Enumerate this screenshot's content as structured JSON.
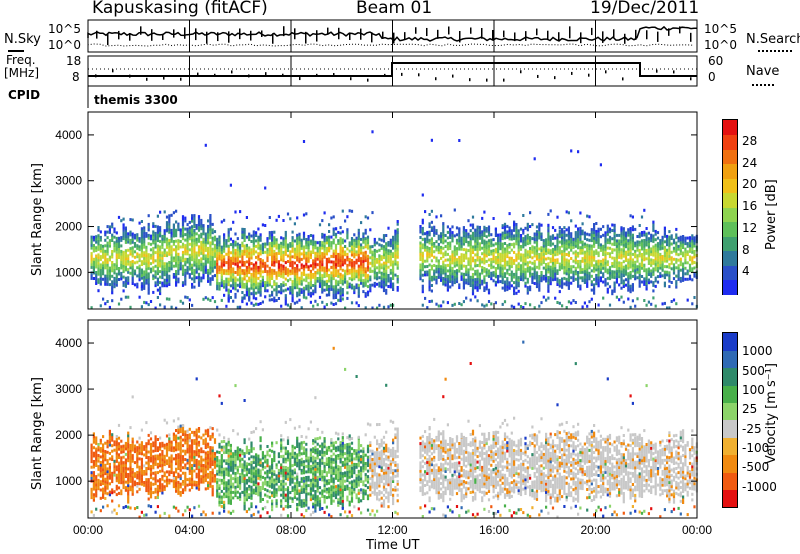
{
  "header": {
    "station": "Kapuskasing (fitACF)",
    "beam": "Beam 01",
    "date": "19/Dec/2011"
  },
  "noise_panel": {
    "left_label": "N.Sky",
    "left_ticks": [
      "10^5",
      "10^0"
    ],
    "right_label": "N.Search",
    "right_ticks": [
      "10^5",
      "10^0"
    ]
  },
  "freq_panel": {
    "left_label_1": "Freq.",
    "left_label_2": "[MHz]",
    "left_ticks": [
      "18",
      "8"
    ],
    "right_label": "Nave",
    "right_ticks": [
      "60",
      "0"
    ]
  },
  "cpid_panel": {
    "label": "CPID",
    "value": "themis 3300"
  },
  "colors": {
    "power_scale": [
      "#1f2cf0",
      "#2a50c8",
      "#2f7a9c",
      "#3fa070",
      "#5ec05a",
      "#8ed450",
      "#c8d830",
      "#f0c018",
      "#f0a010",
      "#f07010",
      "#f04010",
      "#e41010"
    ],
    "velocity_scale": [
      "#1a3cc8",
      "#2f6ab4",
      "#2f8a6a",
      "#48b04a",
      "#8cd46a",
      "#c8c8c8",
      "#f0b030",
      "#f08a10",
      "#f05a10",
      "#e41010"
    ]
  },
  "chart_data": [
    {
      "type": "heatmap",
      "ylabel": "Slant Range [km]",
      "xlabel": "",
      "x_ticks": [
        "00:00",
        "04:00",
        "08:00",
        "12:00",
        "16:00",
        "20:00",
        "00:00"
      ],
      "y_ticks": [
        "1000",
        "2000",
        "3000",
        "4000"
      ],
      "ylim": [
        200,
        4500
      ],
      "colorbar": {
        "label": "Power [dB]",
        "ticks": [
          "4",
          "8",
          "12",
          "16",
          "20",
          "24",
          "28"
        ],
        "range": [
          0,
          30
        ]
      }
    },
    {
      "type": "heatmap",
      "ylabel": "Slant Range [km]",
      "xlabel": "Time UT",
      "x_ticks": [
        "00:00",
        "04:00",
        "08:00",
        "12:00",
        "16:00",
        "20:00",
        "00:00"
      ],
      "y_ticks": [
        "1000",
        "2000",
        "3000",
        "4000"
      ],
      "ylim": [
        200,
        4500
      ],
      "colorbar": {
        "label": "Velocity [m s⁻¹]",
        "ticks": [
          "1000",
          "500",
          "100",
          "25",
          "-25",
          "-100",
          "-500",
          "-1000"
        ],
        "range": [
          -1000,
          1000
        ]
      }
    }
  ]
}
